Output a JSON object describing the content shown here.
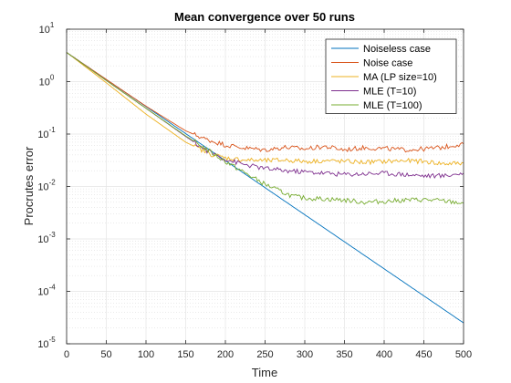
{
  "chart_data": {
    "type": "line",
    "title": "Mean convergence over 50 runs",
    "xlabel": "Time",
    "ylabel": "Procrutes error",
    "xlim": [
      0,
      500
    ],
    "ylim": [
      1e-05,
      10
    ],
    "yscale": "log",
    "grid": true,
    "minor_grid": true,
    "legend_position": "top-right",
    "xticks": [
      "0",
      "50",
      "100",
      "150",
      "200",
      "250",
      "300",
      "350",
      "400",
      "450",
      "500"
    ],
    "yticks": [
      {
        "base": "10",
        "exp": "-5"
      },
      {
        "base": "10",
        "exp": "-4"
      },
      {
        "base": "10",
        "exp": "-3"
      },
      {
        "base": "10",
        "exp": "-2"
      },
      {
        "base": "10",
        "exp": "-1"
      },
      {
        "base": "10",
        "exp": "0"
      },
      {
        "base": "10",
        "exp": "1"
      }
    ],
    "series": [
      {
        "name": "Noiseless case",
        "color": "#0072BD",
        "x": [
          0,
          500
        ],
        "y": [
          3.6,
          2.5e-05
        ]
      },
      {
        "name": "Noise case",
        "color": "#D95319",
        "x": [
          0,
          50,
          100,
          150,
          175,
          200,
          225,
          250,
          275,
          300,
          325,
          350,
          375,
          400,
          425,
          450,
          475,
          490,
          500
        ],
        "y": [
          3.6,
          1.1,
          0.34,
          0.115,
          0.08,
          0.062,
          0.054,
          0.05,
          0.056,
          0.052,
          0.058,
          0.05,
          0.055,
          0.053,
          0.05,
          0.052,
          0.056,
          0.062,
          0.065
        ]
      },
      {
        "name": "MA (LP size=10)",
        "color": "#EDB120",
        "x": [
          0,
          50,
          100,
          150,
          180,
          200,
          225,
          250,
          275,
          300,
          325,
          350,
          375,
          400,
          425,
          450,
          475,
          500
        ],
        "y": [
          3.6,
          0.95,
          0.24,
          0.07,
          0.042,
          0.035,
          0.032,
          0.031,
          0.032,
          0.03,
          0.031,
          0.03,
          0.029,
          0.03,
          0.031,
          0.03,
          0.027,
          0.028
        ]
      },
      {
        "name": "MLE (T=10)",
        "color": "#7E2F8E",
        "x": [
          0,
          50,
          100,
          150,
          175,
          200,
          225,
          250,
          275,
          300,
          325,
          350,
          375,
          400,
          425,
          450,
          475,
          500
        ],
        "y": [
          3.6,
          1.05,
          0.31,
          0.09,
          0.05,
          0.033,
          0.026,
          0.022,
          0.02,
          0.019,
          0.018,
          0.017,
          0.0175,
          0.018,
          0.017,
          0.016,
          0.016,
          0.018
        ]
      },
      {
        "name": "MLE (T=100)",
        "color": "#77AC30",
        "x": [
          0,
          50,
          100,
          150,
          200,
          225,
          250,
          270,
          285,
          300,
          325,
          350,
          375,
          400,
          425,
          450,
          475,
          500
        ],
        "y": [
          3.6,
          1.05,
          0.31,
          0.092,
          0.03,
          0.018,
          0.011,
          0.008,
          0.0065,
          0.006,
          0.0058,
          0.0055,
          0.005,
          0.0052,
          0.0055,
          0.0056,
          0.0053,
          0.0048
        ]
      }
    ]
  }
}
